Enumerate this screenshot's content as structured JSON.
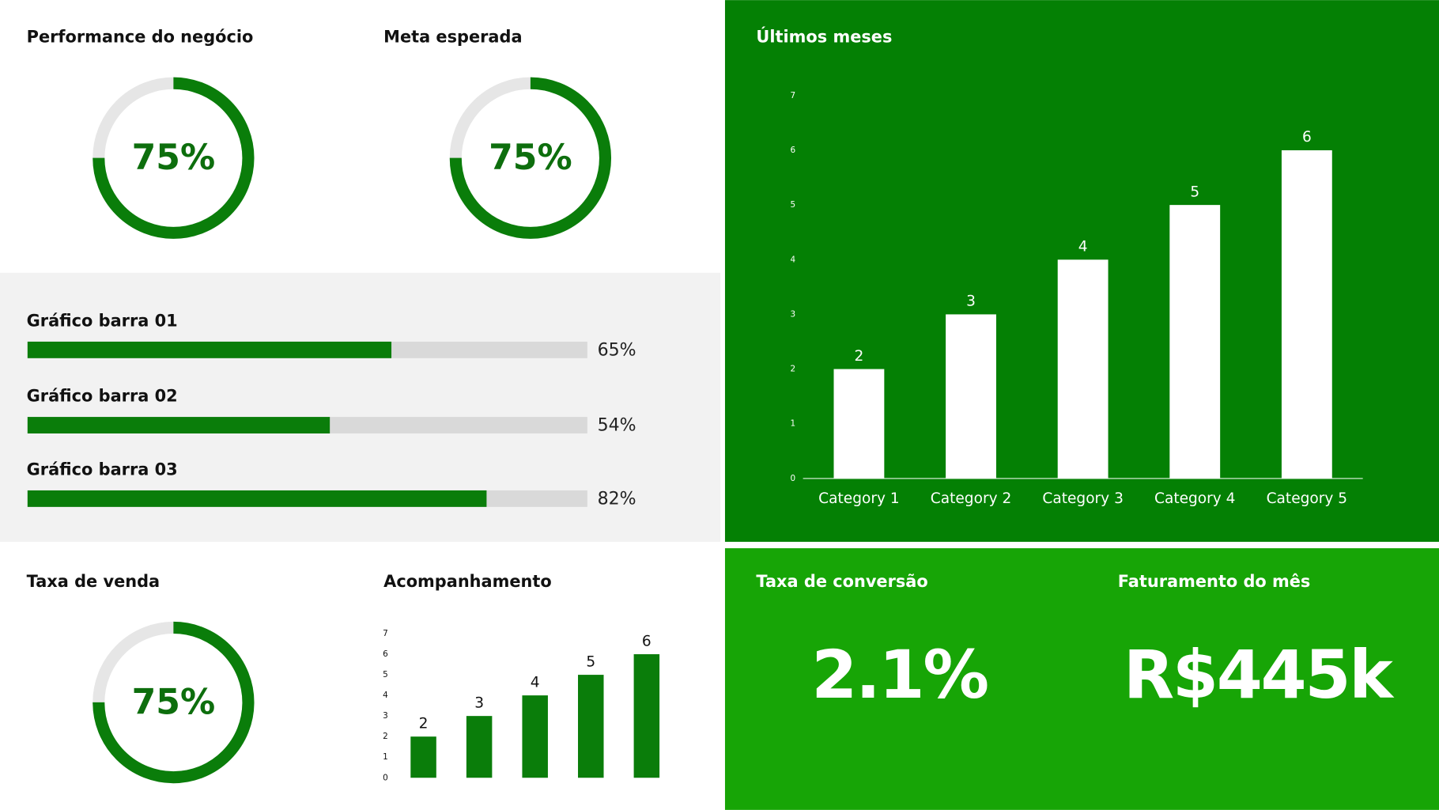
{
  "chart_data": [
    {
      "type": "donut",
      "title": "Performance do negócio",
      "values": [
        75
      ],
      "value_labels": [
        "75%"
      ],
      "color": "#0a7d0a"
    },
    {
      "type": "donut",
      "title": "Meta esperada",
      "values": [
        75
      ],
      "value_labels": [
        "75%"
      ],
      "color": "#0a7d0a"
    },
    {
      "type": "progress",
      "categories": [
        "Gráfico barra 01",
        "Gráfico barra 02",
        "Gráfico barra 03"
      ],
      "values": [
        65,
        54,
        82
      ],
      "value_labels": [
        "65%",
        "54%",
        "82%"
      ],
      "xlim": [
        0,
        100
      ],
      "color": "#0a7d0a"
    },
    {
      "type": "bar",
      "title": "Últimos meses",
      "categories": [
        "Category 1",
        "Category 2",
        "Category 3",
        "Category 4",
        "Category 5"
      ],
      "values": [
        2,
        3,
        4,
        5,
        6
      ],
      "ylim": [
        0,
        7
      ],
      "yticks": [
        0,
        1,
        2,
        3,
        4,
        5,
        6,
        7
      ],
      "color": "#ffffff"
    },
    {
      "type": "donut",
      "title": "Taxa de venda",
      "values": [
        75
      ],
      "value_labels": [
        "75%"
      ],
      "color": "#0a7d0a"
    },
    {
      "type": "bar",
      "title": "Acompanhamento",
      "values": [
        2,
        3,
        4,
        5,
        6
      ],
      "ylim": [
        0,
        7
      ],
      "yticks": [
        0,
        1,
        2,
        3,
        4,
        5,
        6,
        7
      ],
      "color": "#0a7d0a"
    },
    {
      "type": "kpi",
      "title": "Taxa de conversão",
      "values": [
        2.1
      ],
      "value_labels": [
        "2.1%"
      ]
    },
    {
      "type": "kpi",
      "title": "Faturamento do mês",
      "values": [
        445000
      ],
      "value_labels": [
        "R$445k"
      ]
    }
  ]
}
